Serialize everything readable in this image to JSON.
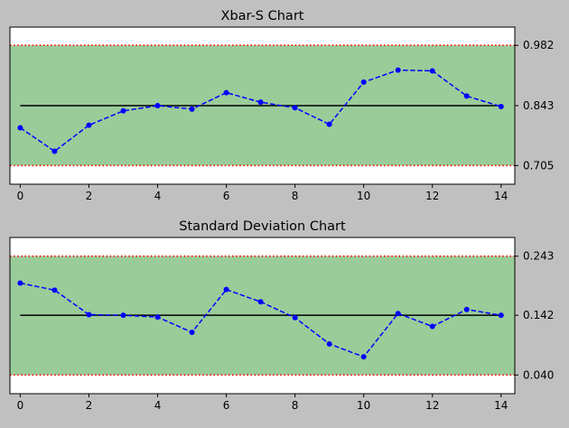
{
  "figure": {
    "background": "#c0c0c0"
  },
  "chart_data": [
    {
      "type": "line",
      "title": "Xbar-S Chart",
      "xlabel": "",
      "ylabel": "",
      "x": [
        0,
        1,
        2,
        3,
        4,
        5,
        6,
        7,
        8,
        9,
        10,
        11,
        12,
        13,
        14
      ],
      "x_ticks": [
        0,
        2,
        4,
        6,
        8,
        10,
        12,
        14
      ],
      "x_tick_labels": [
        "0",
        "2",
        "4",
        "6",
        "8",
        "10",
        "12",
        "14"
      ],
      "xlim": [
        -0.3,
        14.4
      ],
      "ylim": [
        0.662,
        1.024
      ],
      "y_ticks": [
        0.982,
        0.843,
        0.705
      ],
      "y_tick_labels": [
        "0.982",
        "0.843",
        "0.705"
      ],
      "y_axis_side": "right",
      "series": [
        {
          "values": [
            0.792,
            0.738,
            0.798,
            0.831,
            0.843,
            0.835,
            0.873,
            0.851,
            0.838,
            0.8,
            0.897,
            0.925,
            0.923,
            0.865,
            0.841
          ],
          "color": "#0000ff",
          "line_style": "dashed",
          "marker": "circle"
        }
      ],
      "center_line": {
        "value": 0.843,
        "color": "#000000"
      },
      "control_limits": {
        "upper": 0.982,
        "lower": 0.705,
        "color": "#ff0000",
        "line_style": "dotted"
      },
      "band": {
        "from": 0.705,
        "to": 0.982,
        "color": "#99cc99"
      },
      "grid": false
    },
    {
      "type": "line",
      "title": "Standard Deviation Chart",
      "xlabel": "",
      "ylabel": "",
      "x": [
        0,
        1,
        2,
        3,
        4,
        5,
        6,
        7,
        8,
        9,
        10,
        11,
        12,
        13,
        14
      ],
      "x_ticks": [
        0,
        2,
        4,
        6,
        8,
        10,
        12,
        14
      ],
      "x_tick_labels": [
        "0",
        "2",
        "4",
        "6",
        "8",
        "10",
        "12",
        "14"
      ],
      "xlim": [
        -0.3,
        14.4
      ],
      "ylim": [
        0.008,
        0.275
      ],
      "y_ticks": [
        0.243,
        0.142,
        0.04
      ],
      "y_tick_labels": [
        "0.243",
        "0.142",
        "0.040"
      ],
      "y_axis_side": "right",
      "series": [
        {
          "values": [
            0.197,
            0.185,
            0.143,
            0.142,
            0.139,
            0.113,
            0.186,
            0.165,
            0.138,
            0.093,
            0.071,
            0.145,
            0.123,
            0.152,
            0.142
          ],
          "color": "#0000ff",
          "line_style": "dashed",
          "marker": "circle"
        }
      ],
      "center_line": {
        "value": 0.142,
        "color": "#000000"
      },
      "control_limits": {
        "upper": 0.243,
        "lower": 0.04,
        "color": "#ff0000",
        "line_style": "dotted"
      },
      "band": {
        "from": 0.04,
        "to": 0.243,
        "color": "#99cc99"
      },
      "grid": false
    }
  ]
}
